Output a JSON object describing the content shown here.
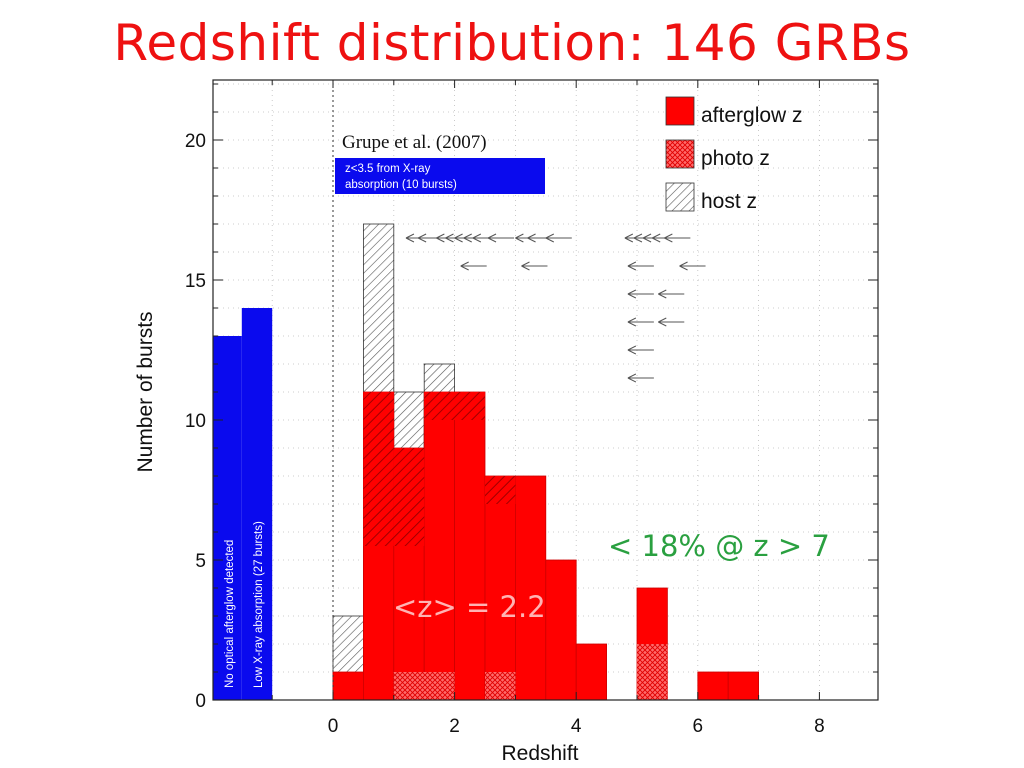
{
  "slide": {
    "title": "Redshift distribution: 146 GRBs"
  },
  "chart_data": {
    "type": "bar",
    "xlabel": "Redshift",
    "ylabel": "Number of bursts",
    "xlim": [
      -2,
      9
    ],
    "ylim": [
      0,
      22
    ],
    "x_ticks": [
      "0",
      "2",
      "4",
      "6",
      "8"
    ],
    "y_ticks": [
      "0",
      "5",
      "10",
      "15",
      "20"
    ],
    "bin_width": 0.5,
    "legend_position": "top-right",
    "series": [
      {
        "name": "afterglow z",
        "bins": [
          {
            "x0": 0.0,
            "x1": 0.5,
            "count": 1
          },
          {
            "x0": 0.5,
            "x1": 1.0,
            "count": 11
          },
          {
            "x0": 1.0,
            "x1": 1.5,
            "count": 9
          },
          {
            "x0": 1.5,
            "x1": 2.0,
            "count": 11
          },
          {
            "x0": 2.0,
            "x1": 2.5,
            "count": 11
          },
          {
            "x0": 2.5,
            "x1": 3.0,
            "count": 8
          },
          {
            "x0": 3.0,
            "x1": 3.5,
            "count": 8
          },
          {
            "x0": 3.5,
            "x1": 4.0,
            "count": 5
          },
          {
            "x0": 4.0,
            "x1": 4.5,
            "count": 2
          },
          {
            "x0": 5.0,
            "x1": 5.5,
            "count": 4
          },
          {
            "x0": 6.0,
            "x1": 6.5,
            "count": 1
          },
          {
            "x0": 6.5,
            "x1": 7.0,
            "count": 1
          }
        ]
      },
      {
        "name": "photo z",
        "bins": [
          {
            "x0": 1.0,
            "x1": 2.0,
            "count": 1
          },
          {
            "x0": 2.5,
            "x1": 3.0,
            "count": 1
          },
          {
            "x0": 5.0,
            "x1": 5.5,
            "count": 2
          }
        ]
      },
      {
        "name": "host z",
        "bins": [
          {
            "x0": 0.0,
            "x1": 0.5,
            "count": 3
          },
          {
            "x0": 0.5,
            "x1": 1.0,
            "count": 17
          },
          {
            "x0": 1.0,
            "x1": 1.5,
            "count": 11
          },
          {
            "x0": 1.5,
            "x1": 2.0,
            "count": 12
          }
        ]
      },
      {
        "name": "No optical afterglow detected",
        "bins": [
          {
            "x0": -2.0,
            "x1": -1.5,
            "count": 13
          },
          {
            "x0": -1.5,
            "x1": -1.0,
            "count": 14
          }
        ]
      }
    ],
    "dark_hatch_regions": [
      {
        "x0": 0.5,
        "x1": 1.0,
        "y0": 5.5,
        "y1": 11
      },
      {
        "x0": 1.0,
        "x1": 1.5,
        "y0": 5.5,
        "y1": 9
      },
      {
        "x0": 1.5,
        "x1": 2.5,
        "y0": 10,
        "y1": 11
      },
      {
        "x0": 2.5,
        "x1": 3.0,
        "y0": 7,
        "y1": 8
      }
    ],
    "upper_limit_arrows": [
      {
        "y": 16.5,
        "x": [
          1.2,
          1.4,
          1.7,
          1.85,
          2.0,
          2.15,
          2.3,
          2.55,
          3.0,
          3.2,
          3.5,
          4.8,
          4.95,
          5.1,
          5.25,
          5.45
        ]
      },
      {
        "y": 15.5,
        "x": [
          2.1,
          3.1,
          4.85,
          5.7
        ]
      },
      {
        "y": 14.5,
        "x": [
          4.85,
          5.35
        ]
      },
      {
        "y": 13.5,
        "x": [
          4.85,
          5.35
        ]
      },
      {
        "y": 12.5,
        "x": [
          4.85
        ]
      },
      {
        "y": 11.5,
        "x": [
          4.85
        ]
      }
    ],
    "annotations": {
      "reference": "Grupe et al. (2007)",
      "box_top_line1": "z<3.5 from X-ray",
      "box_top_line2": "absorption (10 bursts)",
      "box_left_line1": "No optical afterglow detected",
      "box_left_line2": "Low X-ray absorption (27 bursts)",
      "mean_z": "<z> = 2.2",
      "fraction_high_z": "< 18% @ z > 7"
    },
    "colors": {
      "afterglow": "#ff0000",
      "dark_hatch": "#b50000",
      "photo": "#ff7070",
      "host_hatch": "#555555",
      "no_afterglow": "#0a0aee",
      "mean_text": "#ffb3b3",
      "fraction_text": "#2aa040",
      "title": "#ee1111"
    }
  }
}
